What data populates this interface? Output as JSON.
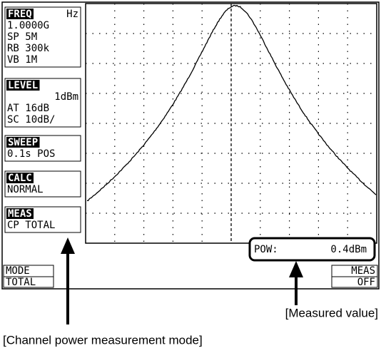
{
  "panels": [
    {
      "title": "FREQ",
      "unit": "Hz",
      "lines": [
        "1.0000G",
        "SP 5M",
        "RB 300k",
        "VB 1M"
      ]
    },
    {
      "title": "LEVEL",
      "lines": [
        "1dBm",
        "AT 16dB",
        "SC 10dB/"
      ]
    },
    {
      "title": "SWEEP",
      "lines": [
        "0.1s POS"
      ]
    },
    {
      "title": "CALC",
      "lines": [
        "NORMAL"
      ]
    },
    {
      "title": "MEAS",
      "lines": [
        "CP TOTAL"
      ]
    }
  ],
  "softkeys": {
    "left": [
      "MODE",
      "TOTAL"
    ],
    "right": [
      "MEAS",
      "OFF"
    ]
  },
  "readout": {
    "label": "POW:",
    "value": "0.4dBm"
  },
  "annotations": {
    "measured": "[Measured value]",
    "mode": "[Channel power measurement mode]"
  }
}
